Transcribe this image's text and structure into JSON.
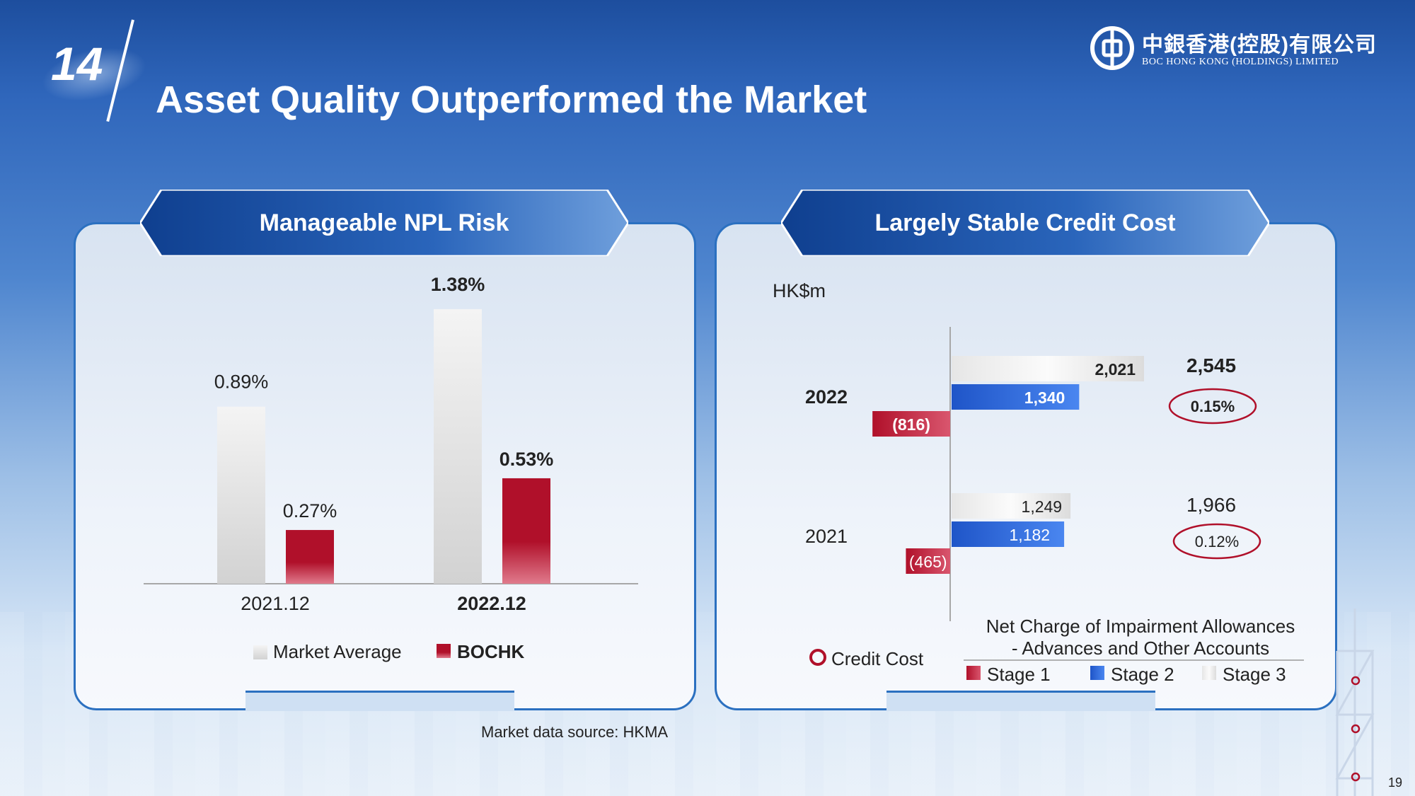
{
  "header": {
    "section_number": "14",
    "title": "Asset Quality Outperformed the Market",
    "logo_cn": "中銀香港(控股)有限公司",
    "logo_en": "BOC HONG KONG (HOLDINGS) LIMITED"
  },
  "left_panel": {
    "title": "Manageable NPL Risk"
  },
  "right_panel": {
    "title": "Largely Stable Credit Cost",
    "unit": "HK$m"
  },
  "footnote": "Market data source: HKMA",
  "page_number": "19",
  "colors": {
    "bochk_red": "#b0102a",
    "stage2_blue": "#2f6fe0",
    "stage3_grey": "#d8d8d8",
    "circle_red": "#b0102a"
  },
  "chart_data": [
    {
      "type": "bar",
      "categories": [
        "2021.12",
        "2022.12"
      ],
      "series": [
        {
          "name": "Market Average",
          "values": [
            0.89,
            1.38
          ],
          "labels": [
            "0.89%",
            "1.38%"
          ]
        },
        {
          "name": "BOCHK",
          "values": [
            0.27,
            0.53
          ],
          "labels": [
            "0.27%",
            "0.53%"
          ]
        }
      ],
      "ylim": [
        0,
        1.6
      ],
      "legend": "bottom",
      "grid": false
    },
    {
      "type": "bar",
      "orientation": "horizontal",
      "categories": [
        "2022",
        "2021"
      ],
      "series": [
        {
          "name": "Stage 3",
          "values": [
            2021,
            1249
          ],
          "labels": [
            "2,021",
            "1,249"
          ]
        },
        {
          "name": "Stage 2",
          "values": [
            1340,
            1182
          ],
          "labels": [
            "1,340",
            "1,182"
          ]
        },
        {
          "name": "Stage 1",
          "values": [
            -816,
            -465
          ],
          "labels": [
            "(816)",
            "(465)"
          ]
        }
      ],
      "totals": [
        "2,545",
        "1,966"
      ],
      "credit_cost": [
        "0.15%",
        "0.12%"
      ],
      "credit_cost_label": "Credit Cost",
      "legend_title": "Net Charge of Impairment Allowances - Advances and Other Accounts",
      "legend": "bottom",
      "grid": false
    }
  ]
}
